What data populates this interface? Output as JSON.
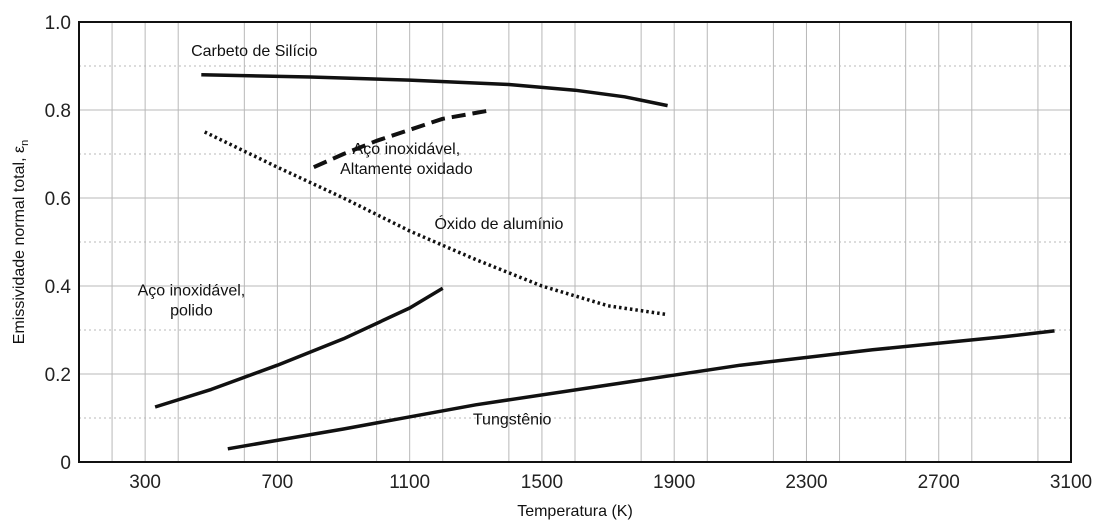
{
  "chart_data": {
    "type": "line",
    "title": "",
    "xlabel": "Temperatura  (K)",
    "ylabel": "Emissividade normal total, ε",
    "ylabel_subscript": "n",
    "xlim": [
      100,
      3100
    ],
    "ylim": [
      0,
      1.0
    ],
    "x_ticks": [
      300,
      700,
      1100,
      1500,
      1900,
      2300,
      2700,
      3100
    ],
    "y_ticks": [
      0,
      0.2,
      0.4,
      0.6,
      0.8,
      1.0
    ],
    "y_tick_labels": [
      "0",
      "0.2",
      "0.4",
      "0.6",
      "0.8",
      "1.0"
    ],
    "grid": true,
    "series": [
      {
        "key": "sic",
        "style": "solid",
        "label_lines": [
          "Carbeto de Silício"
        ],
        "label_at": [
          630,
          0.923
        ],
        "points": [
          [
            470,
            0.88
          ],
          [
            800,
            0.875
          ],
          [
            1100,
            0.868
          ],
          [
            1400,
            0.858
          ],
          [
            1600,
            0.845
          ],
          [
            1750,
            0.83
          ],
          [
            1880,
            0.81
          ]
        ]
      },
      {
        "key": "steel-oxidized",
        "style": "dashed",
        "label_lines": [
          "Aço inoxidável,",
          "Altamente oxidado"
        ],
        "label_at": [
          1090,
          0.7
        ],
        "points": [
          [
            810,
            0.67
          ],
          [
            900,
            0.7
          ],
          [
            1000,
            0.73
          ],
          [
            1100,
            0.755
          ],
          [
            1200,
            0.78
          ],
          [
            1350,
            0.8
          ]
        ]
      },
      {
        "key": "alumina",
        "style": "dotted",
        "label_lines": [
          "Óxido de alumínio"
        ],
        "label_at": [
          1370,
          0.53
        ],
        "points": [
          [
            480,
            0.75
          ],
          [
            700,
            0.67
          ],
          [
            900,
            0.6
          ],
          [
            1100,
            0.525
          ],
          [
            1300,
            0.46
          ],
          [
            1500,
            0.4
          ],
          [
            1700,
            0.355
          ],
          [
            1880,
            0.335
          ]
        ]
      },
      {
        "key": "steel-polished",
        "style": "solid",
        "label_lines": [
          "Aço inoxidável,",
          "polido"
        ],
        "label_at": [
          440,
          0.378
        ],
        "points": [
          [
            330,
            0.125
          ],
          [
            500,
            0.165
          ],
          [
            700,
            0.22
          ],
          [
            900,
            0.28
          ],
          [
            1100,
            0.35
          ],
          [
            1200,
            0.395
          ]
        ]
      },
      {
        "key": "tungsten",
        "style": "solid",
        "label_lines": [
          "Tungstênio"
        ],
        "label_at": [
          1410,
          0.085
        ],
        "points": [
          [
            550,
            0.03
          ],
          [
            900,
            0.075
          ],
          [
            1300,
            0.13
          ],
          [
            1700,
            0.175
          ],
          [
            2100,
            0.22
          ],
          [
            2500,
            0.255
          ],
          [
            2900,
            0.285
          ],
          [
            3050,
            0.298
          ]
        ]
      }
    ]
  }
}
